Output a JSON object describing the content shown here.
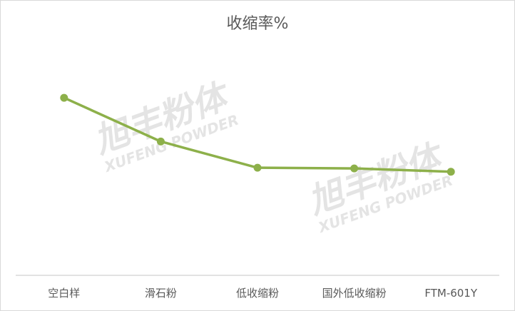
{
  "chart_data": {
    "type": "line",
    "title": "收缩率%",
    "categories": [
      "空白样",
      "滑石粉",
      "低收缩粉",
      "国外低收缩粉",
      "FTM-601Y"
    ],
    "series": [
      {
        "values": [
          2.64,
          1.99,
          1.6,
          1.59,
          1.54
        ]
      }
    ],
    "ylim": [
      0,
      3.5
    ],
    "y_axis_visible": false,
    "grid": false,
    "legend": "none",
    "colors": {
      "line": "#8db04a",
      "axis": "#d9d9d9",
      "text": "#595959"
    }
  },
  "watermark": {
    "cn": "旭丰粉体",
    "en": "XUFENG POWDER"
  }
}
